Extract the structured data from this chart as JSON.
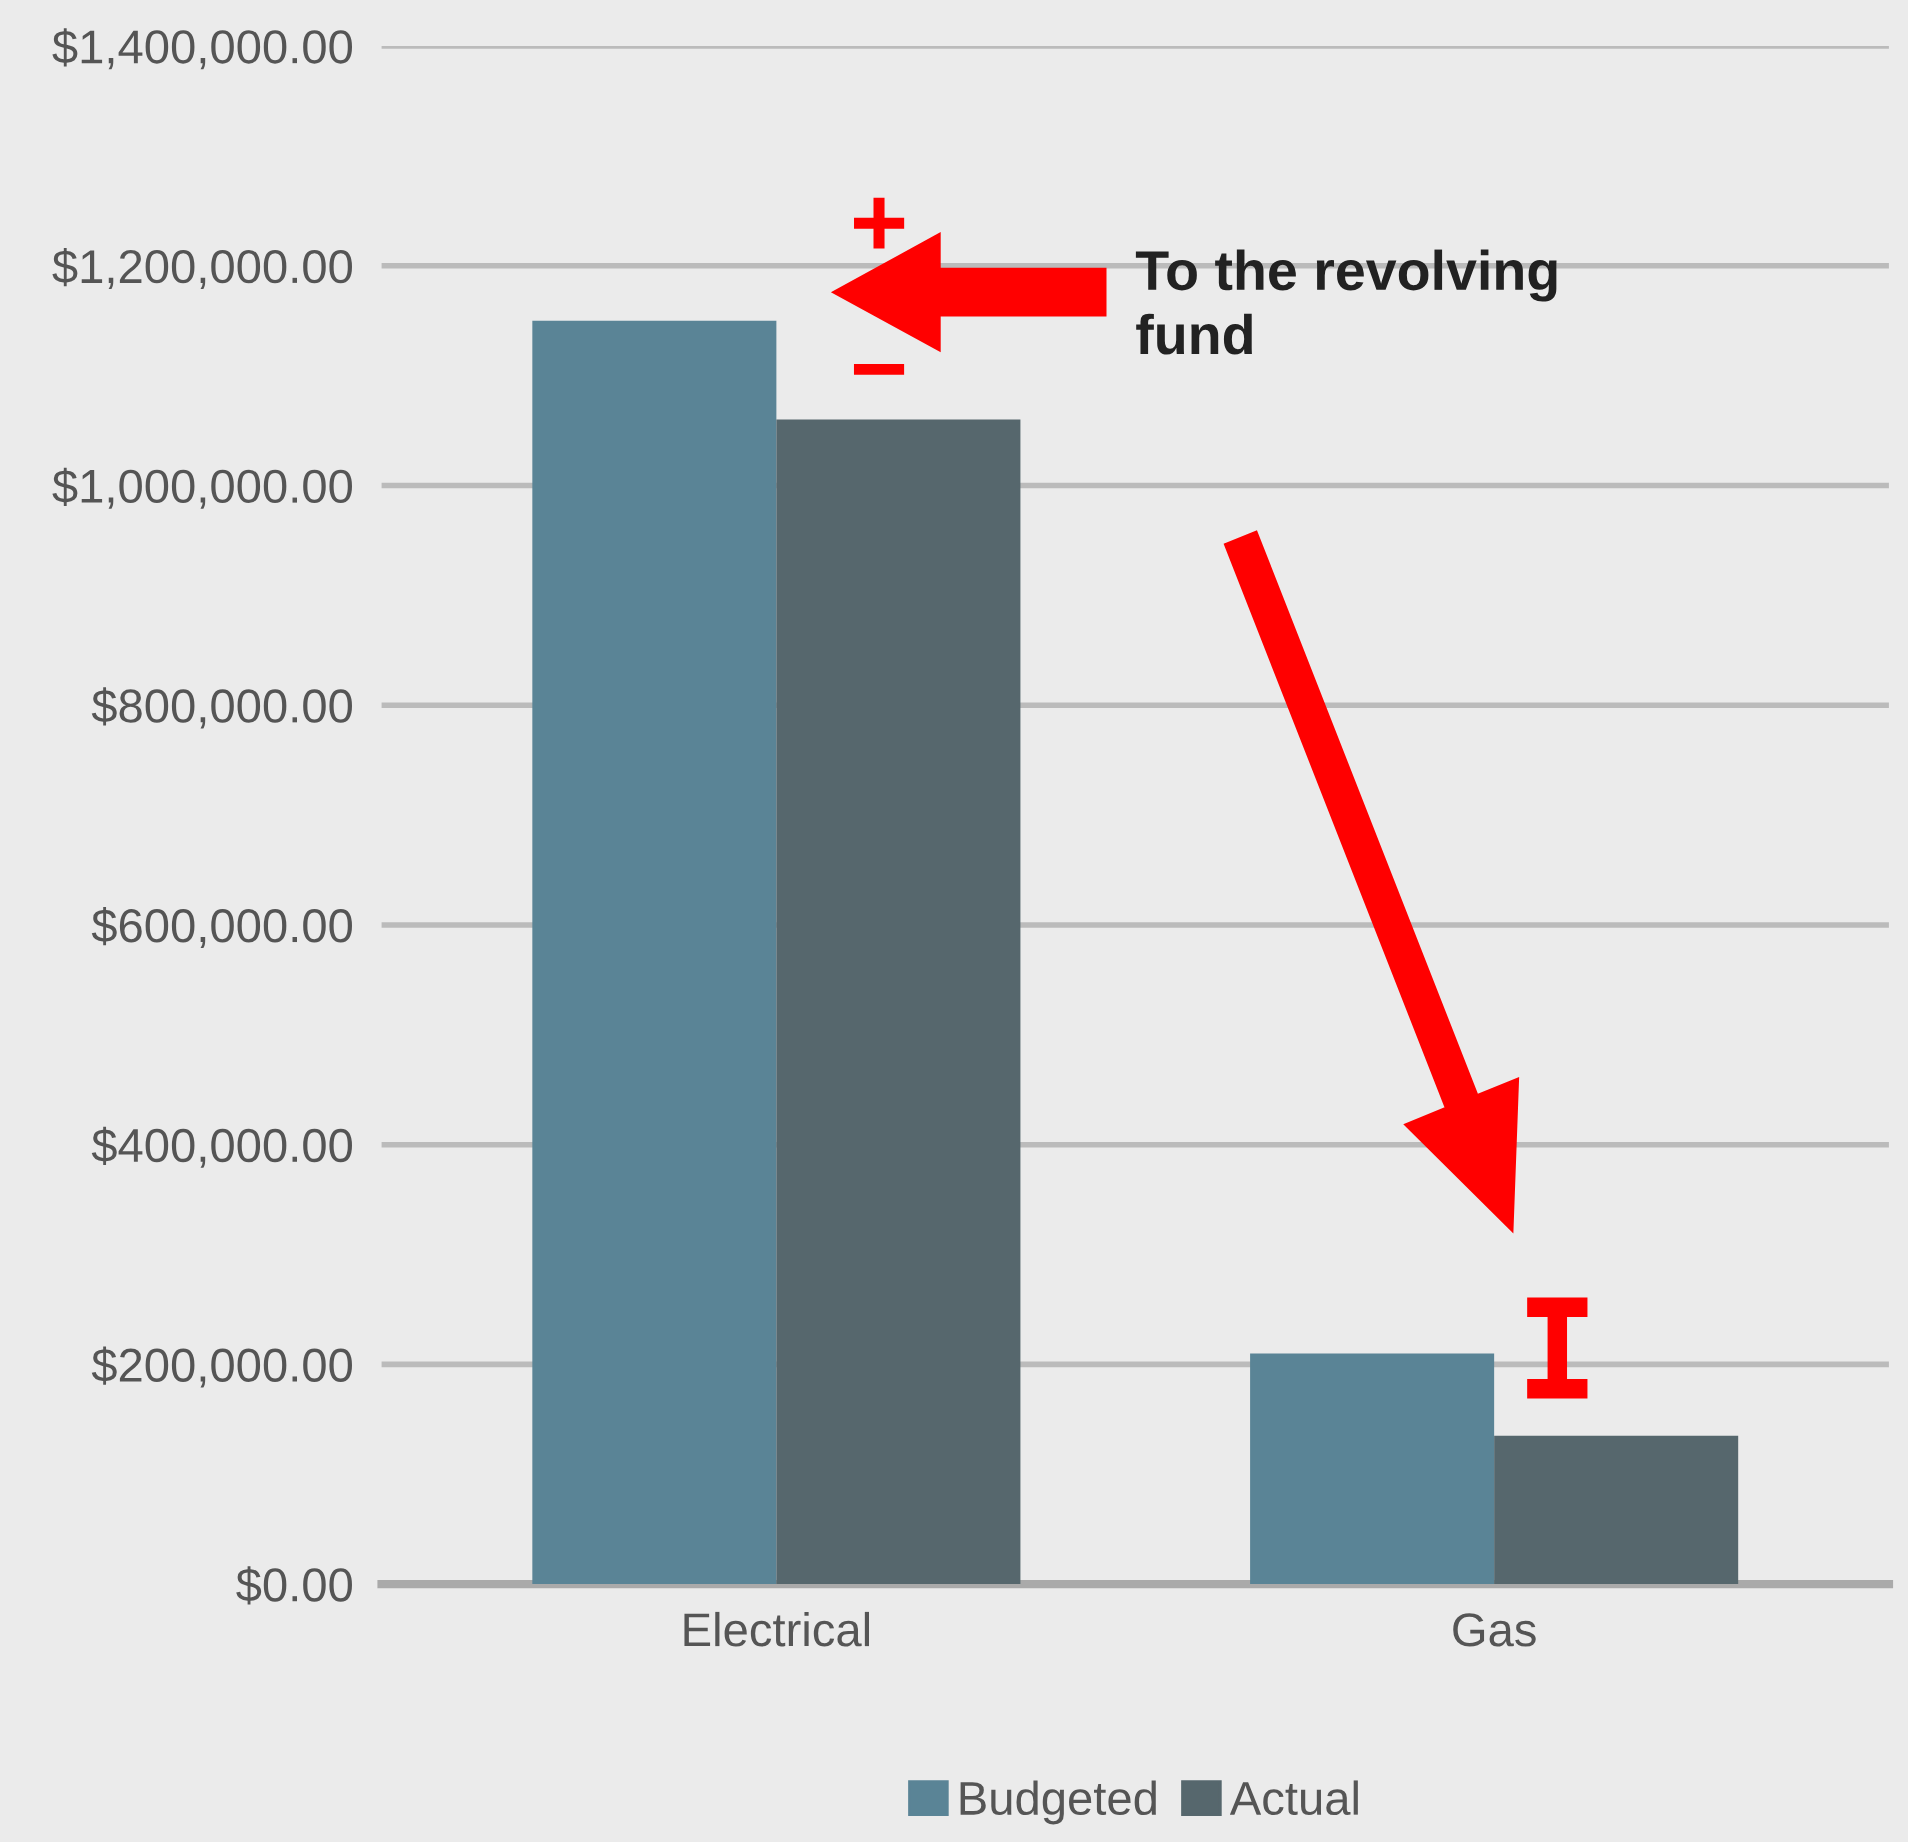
{
  "chart_data": {
    "type": "bar",
    "categories": [
      "Electrical",
      "Gas"
    ],
    "series": [
      {
        "name": "Budgeted",
        "color": "#5a8496",
        "values": [
          1150000,
          210000
        ]
      },
      {
        "name": "Actual",
        "color": "#56676d",
        "values": [
          1060000,
          135000
        ]
      }
    ],
    "ylim": [
      0,
      1400000
    ],
    "yticks": [
      {
        "value": 0,
        "label": "$0.00"
      },
      {
        "value": 200000,
        "label": "$200,000.00"
      },
      {
        "value": 400000,
        "label": "$400,000.00"
      },
      {
        "value": 600000,
        "label": "$600,000.00"
      },
      {
        "value": 800000,
        "label": "$800,000.00"
      },
      {
        "value": 1000000,
        "label": "$1,000,000.00"
      },
      {
        "value": 1200000,
        "label": "$1,200,000.00"
      },
      {
        "value": 1400000,
        "label": "$1,400,000.00"
      }
    ],
    "grid": "y",
    "legend": "bottom",
    "annotations": [
      "+",
      "−",
      "To the revolving\nfund"
    ]
  }
}
